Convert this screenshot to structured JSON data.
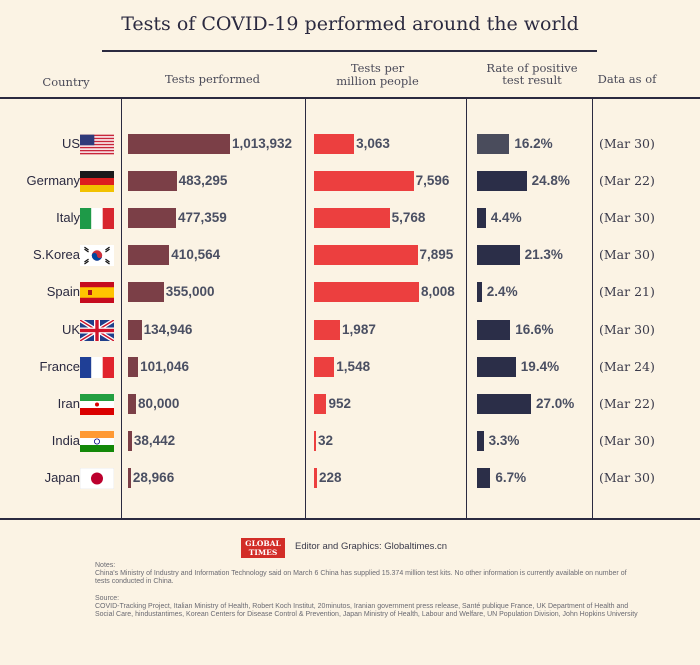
{
  "title": "Tests of COVID-19 performed around the world",
  "headers": {
    "country": "Country",
    "tests": "Tests performed",
    "per_million_line1": "Tests per",
    "per_million_line2": "million people",
    "rate_line1": "Rate of positive",
    "rate_line2": "test result",
    "date": "Data as of"
  },
  "chart_data": {
    "type": "table",
    "title": "Tests of COVID-19 performed around the world",
    "columns": [
      "Country",
      "Tests performed",
      "Tests per million people",
      "Rate of positive test result",
      "Data as of"
    ],
    "rows": [
      {
        "country": "US",
        "tests": 1013932,
        "tests_label": "1,013,932",
        "per_million": 3063,
        "per_million_label": "3,063",
        "rate": 16.2,
        "rate_label": "16.2%",
        "date": "(Mar 30)",
        "rate_color": "#4a4c5c"
      },
      {
        "country": "Germany",
        "tests": 483295,
        "tests_label": "483,295",
        "per_million": 7596,
        "per_million_label": "7,596",
        "rate": 24.8,
        "rate_label": "24.8%",
        "date": "(Mar 22)",
        "rate_color": "#2b2e48"
      },
      {
        "country": "Italy",
        "tests": 477359,
        "tests_label": "477,359",
        "per_million": 5768,
        "per_million_label": "5,768",
        "rate": 4.4,
        "rate_label": "4.4%",
        "date": "(Mar 30)",
        "rate_color": "#2b2e48"
      },
      {
        "country": "S.Korea",
        "tests": 410564,
        "tests_label": "410,564",
        "per_million": 7895,
        "per_million_label": "7,895",
        "rate": 21.3,
        "rate_label": "21.3%",
        "date": "(Mar 30)",
        "rate_color": "#2b2e48"
      },
      {
        "country": "Spain",
        "tests": 355000,
        "tests_label": "355,000",
        "per_million": 8008,
        "per_million_label": "8,008",
        "rate": 2.4,
        "rate_label": "2.4%",
        "date": "(Mar 21)",
        "rate_color": "#2b2e48"
      },
      {
        "country": "UK",
        "tests": 134946,
        "tests_label": "134,946",
        "per_million": 1987,
        "per_million_label": "1,987",
        "rate": 16.6,
        "rate_label": "16.6%",
        "date": "(Mar 30)",
        "rate_color": "#2b2e48"
      },
      {
        "country": "France",
        "tests": 101046,
        "tests_label": "101,046",
        "per_million": 1548,
        "per_million_label": "1,548",
        "rate": 19.4,
        "rate_label": "19.4%",
        "date": "(Mar 24)",
        "rate_color": "#2b2e48"
      },
      {
        "country": "Iran",
        "tests": 80000,
        "tests_label": "80,000",
        "per_million": 952,
        "per_million_label": "952",
        "rate": 27.0,
        "rate_label": "27.0%",
        "date": "(Mar 22)",
        "rate_color": "#2b2e48"
      },
      {
        "country": "India",
        "tests": 38442,
        "tests_label": "38,442",
        "per_million": 32,
        "per_million_label": "32",
        "rate": 3.3,
        "rate_label": "3.3%",
        "date": "(Mar 30)",
        "rate_color": "#2b2e48"
      },
      {
        "country": "Japan",
        "tests": 28966,
        "tests_label": "28,966",
        "per_million": 228,
        "per_million_label": "228",
        "rate": 6.7,
        "rate_label": "6.7%",
        "date": "(Mar 30)",
        "rate_color": "#2b2e48"
      }
    ]
  },
  "colors": {
    "tests_bar": "#7b3f47",
    "per_million_bar": "#ec3f3f"
  },
  "footer": {
    "logo_line1": "GLOBAL",
    "logo_line2": "TIMES",
    "credit": "Editor and Graphics: Globaltimes.cn",
    "notes_label": "Notes:",
    "notes_text": "China's Ministry of Industry and Information Technology said on March 6 China has supplied 15.374 million test kits. No other information is currently available on number of tests conducted in China.",
    "source_label": "Source:",
    "source_text": "COVID-Tracking Project, Italian Ministry of Health, Robert Koch Institut, 20minutos, Iranian government press release, Santé publique France, UK Department of Health and Social Care, hindustantimes, Korean Centers for Disease Control & Prevention,   Japan Ministry of Health, Labour and Welfare, UN Population Division, John Hopkins University"
  }
}
